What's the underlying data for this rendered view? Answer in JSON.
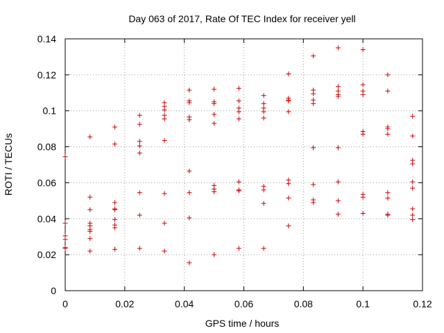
{
  "chart_data": {
    "type": "scatter",
    "title": "Day 063 of 2017, Rate Of TEC Index for receiver yell",
    "xlabel": "GPS time / hours",
    "ylabel": "ROTI / TECUs",
    "xlim": [
      0,
      0.12
    ],
    "ylim": [
      0,
      0.14
    ],
    "grid": true,
    "x_ticks": [
      0,
      0.02,
      0.04,
      0.06,
      0.08,
      0.1,
      0.12
    ],
    "x_tick_labels": [
      "0",
      "0.02",
      "0.04",
      "0.06",
      "0.08",
      "0.1",
      "0.12"
    ],
    "y_ticks": [
      0,
      0.02,
      0.04,
      0.06,
      0.08,
      0.1,
      0.12,
      0.14
    ],
    "y_tick_labels": [
      "0",
      "0.02",
      "0.04",
      "0.06",
      "0.08",
      "0.1",
      "0.12",
      "0.14"
    ],
    "marker": "plus",
    "marker_color": "#cc0000",
    "series": [
      {
        "name": "yell",
        "points": [
          [
            0,
            0.0745
          ],
          [
            0,
            0.0375
          ],
          [
            0,
            0.0305
          ],
          [
            0,
            0.0285
          ],
          [
            0,
            0.024
          ],
          [
            0,
            0.0235
          ],
          [
            0.00833,
            0.0855
          ],
          [
            0.00833,
            0.052
          ],
          [
            0.00833,
            0.045
          ],
          [
            0.00833,
            0.0375
          ],
          [
            0.00833,
            0.036
          ],
          [
            0.00833,
            0.034
          ],
          [
            0.00833,
            0.033
          ],
          [
            0.00833,
            0.029
          ],
          [
            0.00833,
            0.022
          ],
          [
            0.01667,
            0.091
          ],
          [
            0.01667,
            0.0815
          ],
          [
            0.01667,
            0.049
          ],
          [
            0.01667,
            0.0455
          ],
          [
            0.01667,
            0.045
          ],
          [
            0.01667,
            0.0395
          ],
          [
            0.01667,
            0.0365
          ],
          [
            0.01667,
            0.035
          ],
          [
            0.01667,
            0.023
          ],
          [
            0.025,
            0.0975
          ],
          [
            0.025,
            0.0925
          ],
          [
            0.025,
            0.083
          ],
          [
            0.025,
            0.0805
          ],
          [
            0.025,
            0.0765
          ],
          [
            0.025,
            0.0545
          ],
          [
            0.025,
            0.042
          ],
          [
            0.025,
            0.0235
          ],
          [
            0.03333,
            0.1045
          ],
          [
            0.03333,
            0.1025
          ],
          [
            0.03333,
            0.1005
          ],
          [
            0.03333,
            0.0975
          ],
          [
            0.03333,
            0.0955
          ],
          [
            0.03333,
            0.0835
          ],
          [
            0.03333,
            0.054
          ],
          [
            0.03333,
            0.0375
          ],
          [
            0.03333,
            0.022
          ],
          [
            0.04167,
            0.1115
          ],
          [
            0.04167,
            0.1055
          ],
          [
            0.04167,
            0.1045
          ],
          [
            0.04167,
            0.0965
          ],
          [
            0.04167,
            0.095
          ],
          [
            0.04167,
            0.0665
          ],
          [
            0.04167,
            0.0545
          ],
          [
            0.04167,
            0.0405
          ],
          [
            0.04167,
            0.0155
          ],
          [
            0.05,
            0.112
          ],
          [
            0.05,
            0.105
          ],
          [
            0.05,
            0.104
          ],
          [
            0.05,
            0.098
          ],
          [
            0.05,
            0.093
          ],
          [
            0.05,
            0.0585
          ],
          [
            0.05,
            0.0565
          ],
          [
            0.05,
            0.055
          ],
          [
            0.05,
            0.02
          ],
          [
            0.05833,
            0.1125
          ],
          [
            0.05833,
            0.1055
          ],
          [
            0.05833,
            0.1015
          ],
          [
            0.05833,
            0.0995
          ],
          [
            0.05833,
            0.0955
          ],
          [
            0.05833,
            0.0605
          ],
          [
            0.05833,
            0.056
          ],
          [
            0.05833,
            0.0555
          ],
          [
            0.05833,
            0.0235
          ],
          [
            0.06667,
            0.1085
          ],
          [
            0.06667,
            0.104
          ],
          [
            0.06667,
            0.1015
          ],
          [
            0.06667,
            0.0995
          ],
          [
            0.06667,
            0.096
          ],
          [
            0.06667,
            0.058
          ],
          [
            0.06667,
            0.056
          ],
          [
            0.06667,
            0.0485
          ],
          [
            0.06667,
            0.0235
          ],
          [
            0.075,
            0.1205
          ],
          [
            0.075,
            0.107
          ],
          [
            0.075,
            0.106
          ],
          [
            0.075,
            0.1055
          ],
          [
            0.075,
            0.0995
          ],
          [
            0.075,
            0.0615
          ],
          [
            0.075,
            0.0595
          ],
          [
            0.075,
            0.0515
          ],
          [
            0.075,
            0.036
          ],
          [
            0.08333,
            0.1305
          ],
          [
            0.08333,
            0.1115
          ],
          [
            0.08333,
            0.1095
          ],
          [
            0.08333,
            0.106
          ],
          [
            0.08333,
            0.104
          ],
          [
            0.08333,
            0.0795
          ],
          [
            0.08333,
            0.059
          ],
          [
            0.08333,
            0.0505
          ],
          [
            0.08333,
            0.049
          ],
          [
            0.09167,
            0.135
          ],
          [
            0.09167,
            0.1135
          ],
          [
            0.09167,
            0.111
          ],
          [
            0.09167,
            0.109
          ],
          [
            0.09167,
            0.108
          ],
          [
            0.09167,
            0.0795
          ],
          [
            0.09167,
            0.0605
          ],
          [
            0.09167,
            0.05
          ],
          [
            0.09167,
            0.0425
          ],
          [
            0.1,
            0.134
          ],
          [
            0.1,
            0.1145
          ],
          [
            0.1,
            0.111
          ],
          [
            0.1,
            0.109
          ],
          [
            0.1,
            0.0885
          ],
          [
            0.1,
            0.087
          ],
          [
            0.1,
            0.0535
          ],
          [
            0.1,
            0.052
          ],
          [
            0.1,
            0.043
          ],
          [
            0.10833,
            0.12
          ],
          [
            0.10833,
            0.111
          ],
          [
            0.10833,
            0.091
          ],
          [
            0.10833,
            0.09
          ],
          [
            0.10833,
            0.087
          ],
          [
            0.10833,
            0.0545
          ],
          [
            0.10833,
            0.0515
          ],
          [
            0.10833,
            0.0425
          ],
          [
            0.10833,
            0.042
          ],
          [
            0.11667,
            0.097
          ],
          [
            0.11667,
            0.086
          ],
          [
            0.11667,
            0.0725
          ],
          [
            0.11667,
            0.0705
          ],
          [
            0.11667,
            0.0605
          ],
          [
            0.11667,
            0.057
          ],
          [
            0.11667,
            0.0455
          ],
          [
            0.11667,
            0.042
          ],
          [
            0.11667,
            0.0395
          ]
        ]
      }
    ]
  }
}
